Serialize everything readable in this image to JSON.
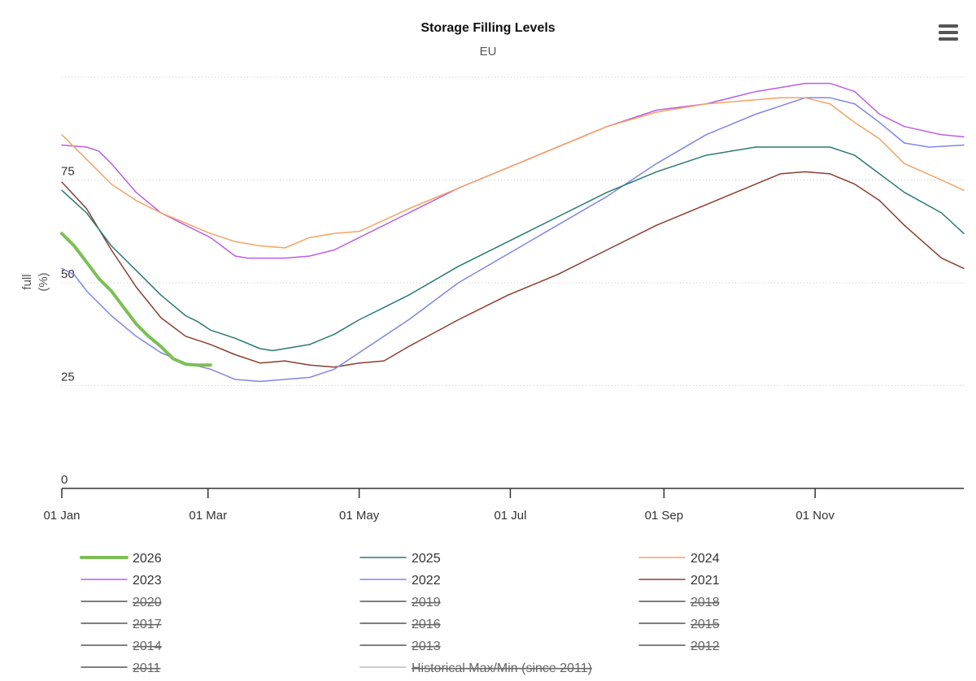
{
  "chart_data": {
    "type": "line",
    "title": "Storage Filling Levels",
    "subtitle": "EU",
    "ylabel_line1": "full",
    "ylabel_line2": "(%)",
    "xlabel": "",
    "ylim": [
      0,
      100
    ],
    "y_ticks": [
      "0",
      "25",
      "50",
      "75"
    ],
    "y_tick_values": [
      0,
      25,
      50,
      75
    ],
    "x_ticks": [
      "01 Jan",
      "01 Mar",
      "01 May",
      "01 Jul",
      "01 Sep",
      "01 Nov"
    ],
    "x_tick_days": [
      0,
      59,
      120,
      181,
      243,
      304
    ],
    "x_range_days": [
      0,
      364
    ],
    "x_unit": "day of year",
    "grid": true,
    "legend_placement": "bottom",
    "series": [
      {
        "name": "2026",
        "color": "#7cbf55",
        "width": 4,
        "visible": true,
        "x": [
          0,
          5,
          10,
          15,
          20,
          25,
          30,
          35,
          40,
          45,
          50,
          55,
          60
        ],
        "y": [
          62,
          59,
          55,
          51,
          48,
          44,
          40,
          37,
          34.5,
          31.5,
          30.2,
          30.0,
          30.0
        ]
      },
      {
        "name": "2025",
        "color": "#2a7a74",
        "width": 1.5,
        "visible": true,
        "x": [
          0,
          10,
          20,
          30,
          40,
          50,
          55,
          60,
          70,
          80,
          85,
          90,
          100,
          110,
          120,
          140,
          160,
          180,
          200,
          220,
          240,
          260,
          280,
          290,
          300,
          310,
          320,
          340,
          355,
          364
        ],
        "y": [
          72.5,
          67,
          59,
          53,
          47,
          42,
          40.5,
          38.5,
          36.5,
          34,
          33.5,
          34,
          35,
          37.5,
          41,
          47,
          54,
          60,
          66,
          72,
          77,
          81,
          83,
          83,
          83,
          83,
          81,
          72,
          67,
          62
        ]
      },
      {
        "name": "2024",
        "color": "#f4a361",
        "width": 1.5,
        "visible": true,
        "x": [
          0,
          10,
          20,
          30,
          40,
          50,
          60,
          70,
          80,
          90,
          100,
          110,
          120,
          140,
          160,
          180,
          200,
          220,
          240,
          260,
          280,
          290,
          300,
          310,
          320,
          330,
          340,
          355,
          364
        ],
        "y": [
          86,
          80,
          74,
          70,
          67,
          64.5,
          62,
          60,
          59,
          58.5,
          61,
          62,
          62.5,
          68,
          73,
          78,
          83,
          88,
          91.5,
          93.5,
          94.5,
          95,
          95,
          93.5,
          89,
          85,
          79,
          75,
          72.5
        ]
      },
      {
        "name": "2023",
        "color": "#b95ee6",
        "width": 1.5,
        "visible": true,
        "x": [
          0,
          10,
          15,
          20,
          30,
          40,
          50,
          60,
          70,
          75,
          80,
          90,
          100,
          110,
          120,
          140,
          160,
          180,
          200,
          220,
          240,
          260,
          280,
          290,
          300,
          310,
          320,
          330,
          340,
          355,
          364
        ],
        "y": [
          83.5,
          83,
          82,
          79,
          72,
          67,
          64,
          61,
          56.5,
          56,
          56,
          56,
          56.5,
          58,
          61,
          67,
          73,
          78,
          83,
          88,
          92,
          93.5,
          96.5,
          97.5,
          98.5,
          98.5,
          96.5,
          91,
          88,
          86,
          85.5
        ]
      },
      {
        "name": "2022",
        "color": "#7f86e6",
        "width": 1.5,
        "visible": true,
        "x": [
          0,
          5,
          10,
          20,
          30,
          40,
          50,
          60,
          70,
          80,
          90,
          100,
          110,
          120,
          140,
          160,
          180,
          200,
          220,
          240,
          260,
          280,
          290,
          300,
          310,
          320,
          330,
          340,
          350,
          364
        ],
        "y": [
          53.5,
          52,
          48,
          42,
          37,
          33,
          30.5,
          29,
          26.5,
          26,
          26.5,
          27,
          29,
          33,
          41,
          50,
          57,
          64,
          71,
          79,
          86,
          91,
          93,
          95,
          95,
          93.5,
          89,
          84,
          83,
          83.5
        ]
      },
      {
        "name": "2021",
        "color": "#8b3e2f",
        "width": 1.5,
        "visible": true,
        "x": [
          0,
          10,
          20,
          30,
          40,
          50,
          60,
          70,
          80,
          90,
          100,
          110,
          120,
          130,
          140,
          160,
          180,
          200,
          220,
          240,
          260,
          280,
          290,
          300,
          310,
          320,
          330,
          340,
          355,
          364
        ],
        "y": [
          74.5,
          68,
          58,
          49,
          41.5,
          37,
          35,
          32.5,
          30.5,
          31,
          30,
          29.5,
          30.5,
          31,
          34.5,
          41,
          47,
          52,
          58,
          64,
          69,
          74,
          76.5,
          77,
          76.5,
          74,
          70,
          64,
          56,
          53.5
        ]
      }
    ],
    "hidden_series": [
      "2020",
      "2019",
      "2018",
      "2017",
      "2016",
      "2015",
      "2014",
      "2013",
      "2012",
      "2011",
      "Historical Max/Min (since 2011)"
    ]
  },
  "legend": {
    "items": [
      {
        "name": "2026",
        "color": "#7cbf55",
        "width": 4,
        "visible": true
      },
      {
        "name": "2025",
        "color": "#2a7a74",
        "width": 1.5,
        "visible": true
      },
      {
        "name": "2024",
        "color": "#f4a361",
        "width": 1.5,
        "visible": true
      },
      {
        "name": "2023",
        "color": "#b95ee6",
        "width": 1.5,
        "visible": true
      },
      {
        "name": "2022",
        "color": "#7f86e6",
        "width": 1.5,
        "visible": true
      },
      {
        "name": "2021",
        "color": "#8b3e2f",
        "width": 1.5,
        "visible": true
      },
      {
        "name": "2020",
        "color": "#555555",
        "width": 1.5,
        "visible": false
      },
      {
        "name": "2019",
        "color": "#555555",
        "width": 1.5,
        "visible": false
      },
      {
        "name": "2018",
        "color": "#555555",
        "width": 1.5,
        "visible": false
      },
      {
        "name": "2017",
        "color": "#555555",
        "width": 1.5,
        "visible": false
      },
      {
        "name": "2016",
        "color": "#555555",
        "width": 1.5,
        "visible": false
      },
      {
        "name": "2015",
        "color": "#555555",
        "width": 1.5,
        "visible": false
      },
      {
        "name": "2014",
        "color": "#555555",
        "width": 1.5,
        "visible": false
      },
      {
        "name": "2013",
        "color": "#555555",
        "width": 1.5,
        "visible": false
      },
      {
        "name": "2012",
        "color": "#555555",
        "width": 1.5,
        "visible": false
      },
      {
        "name": "2011",
        "color": "#555555",
        "width": 1.5,
        "visible": false
      },
      {
        "name": "Historical Max/Min (since 2011)",
        "color": "#cccccc",
        "width": 2,
        "visible": false
      }
    ]
  },
  "menu": {
    "icon": "hamburger-menu-icon"
  }
}
